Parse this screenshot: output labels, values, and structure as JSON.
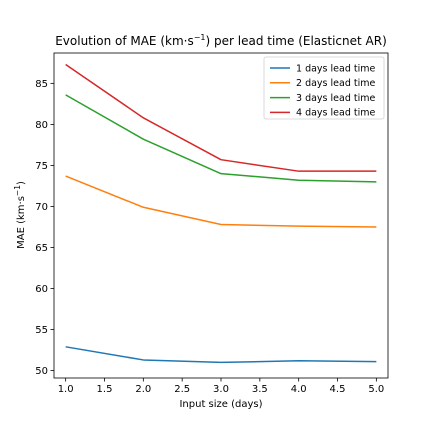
{
  "chart_data": {
    "type": "line",
    "title_main": "Evolution of MAE (km·s",
    "title_sup": "−1",
    "title_tail": ") per lead time (Elasticnet AR)",
    "xlabel": "Input size (days)",
    "ylabel_main": "MAE (km·s",
    "ylabel_sup": "−1",
    "ylabel_tail": ")",
    "xlim": [
      0.85,
      5.15
    ],
    "ylim": [
      49.1,
      88.7
    ],
    "xticks": [
      "1.0",
      "1.5",
      "2.0",
      "2.5",
      "3.0",
      "3.5",
      "4.0",
      "4.5",
      "5.0"
    ],
    "yticks": [
      "50",
      "55",
      "60",
      "65",
      "70",
      "75",
      "80",
      "85"
    ],
    "x": [
      1,
      2,
      3,
      4,
      5
    ],
    "legend_position": "top-right",
    "grid": false,
    "series": [
      {
        "name": "1 days lead time",
        "color": "#1f77b4",
        "values": [
          52.9,
          51.3,
          51.0,
          51.2,
          51.1
        ]
      },
      {
        "name": "2 days lead time",
        "color": "#ff7f0e",
        "values": [
          73.7,
          69.9,
          67.8,
          67.6,
          67.5
        ]
      },
      {
        "name": "3 days lead time",
        "color": "#2ca02c",
        "values": [
          83.6,
          78.2,
          74.0,
          73.2,
          73.0
        ]
      },
      {
        "name": "4 days lead time",
        "color": "#d62728",
        "values": [
          87.3,
          80.8,
          75.7,
          74.3,
          74.3
        ]
      }
    ]
  }
}
